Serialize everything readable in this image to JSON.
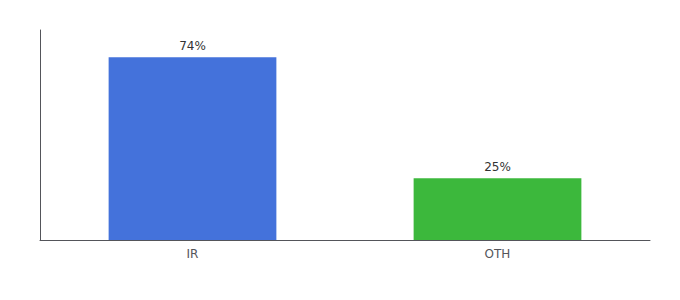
{
  "chart_data": {
    "type": "bar",
    "categories": [
      "IR",
      "OTH"
    ],
    "values": [
      74,
      25
    ],
    "value_labels": [
      "74%",
      "25%"
    ],
    "colors": [
      "#4472db",
      "#3cb83c"
    ],
    "ylim": [
      0,
      85
    ],
    "data_labels": true,
    "tick_labels": "x",
    "grid": false
  }
}
